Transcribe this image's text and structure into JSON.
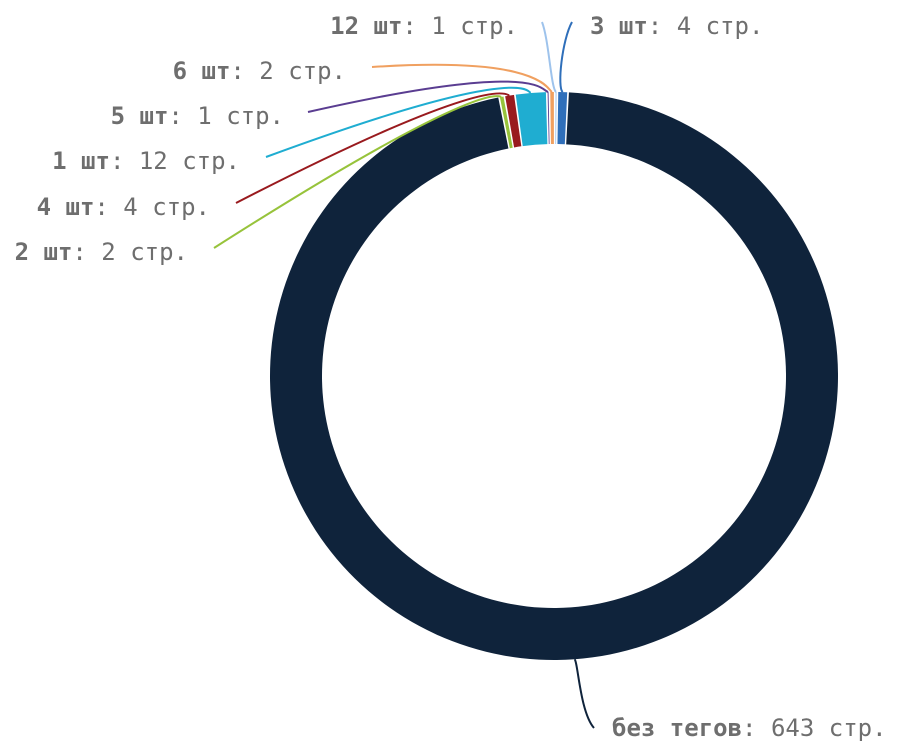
{
  "chart_data": {
    "type": "pie",
    "style": "donut",
    "slices": [
      {
        "label": "3 шт",
        "value": 4,
        "value_text": "4 стр.",
        "color": "#2f6fba"
      },
      {
        "label": "без тегов",
        "value": 643,
        "value_text": "643 стр.",
        "color": "#0f233b"
      },
      {
        "label": "2 шт",
        "value": 2,
        "value_text": "2 стр.",
        "color": "#97c33b"
      },
      {
        "label": "4 шт",
        "value": 4,
        "value_text": "4 стр.",
        "color": "#991a1e"
      },
      {
        "label": "1 шт",
        "value": 12,
        "value_text": "12 стр.",
        "color": "#1fadd1"
      },
      {
        "label": "5 шт",
        "value": 1,
        "value_text": "1 стр.",
        "color": "#5a3d91"
      },
      {
        "label": "6 шт",
        "value": 2,
        "value_text": "2 стр.",
        "color": "#f0a060"
      },
      {
        "label": "12 шт",
        "value": 1,
        "value_text": "1 стр.",
        "color": "#9ec3ec"
      }
    ],
    "separator": ": "
  }
}
